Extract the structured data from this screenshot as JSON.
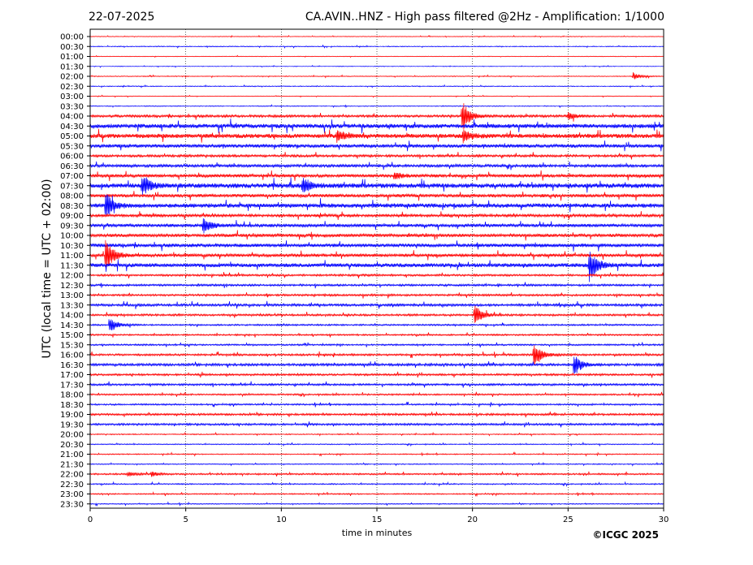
{
  "header": {
    "date": "22-07-2025",
    "title": "CA.AVIN..HNZ - High pass filtered @2Hz - Amplification: 1/1000"
  },
  "footer": {
    "copyright": "©ICGC 2025"
  },
  "colors": {
    "red": "#ff0000",
    "blue": "#0000ff"
  },
  "chart_data": {
    "type": "line",
    "title": "CA.AVIN..HNZ - High pass filtered @2Hz - Amplification: 1/1000",
    "xlabel": "time in minutes",
    "ylabel": "UTC (local time = UTC + 02:00)",
    "xlim": [
      0,
      30
    ],
    "xticks": [
      0,
      5,
      10,
      15,
      20,
      25,
      30
    ],
    "grid": "vertical dotted lines at x = 5, 10, 15, 20, 25",
    "row_labels": [
      "00:00",
      "00:30",
      "01:00",
      "01:30",
      "02:00",
      "02:30",
      "03:00",
      "03:30",
      "04:00",
      "04:30",
      "05:00",
      "05:30",
      "06:00",
      "06:30",
      "07:00",
      "07:30",
      "08:00",
      "08:30",
      "09:00",
      "09:30",
      "10:00",
      "10:30",
      "11:00",
      "11:30",
      "12:00",
      "12:30",
      "13:00",
      "13:30",
      "14:00",
      "14:30",
      "15:00",
      "15:30",
      "16:00",
      "16:30",
      "17:00",
      "17:30",
      "18:00",
      "18:30",
      "19:00",
      "19:30",
      "20:00",
      "20:30",
      "21:00",
      "21:30",
      "22:00",
      "22:30",
      "23:00",
      "23:30"
    ],
    "row_color_cycle": [
      "red",
      "blue"
    ],
    "noise_levels": [
      0.3,
      0.4,
      0.3,
      0.3,
      0.4,
      0.4,
      0.3,
      0.4,
      1.2,
      2.2,
      2.2,
      1.8,
      1.2,
      1.4,
      1.6,
      2.4,
      1.6,
      2.2,
      1.4,
      1.6,
      1.6,
      1.8,
      1.6,
      2.0,
      1.0,
      1.0,
      1.0,
      1.2,
      1.0,
      0.8,
      0.8,
      0.8,
      1.0,
      1.2,
      1.0,
      1.0,
      0.8,
      0.8,
      1.0,
      1.0,
      0.5,
      0.5,
      0.5,
      0.5,
      0.8,
      0.6,
      0.6,
      0.5
    ],
    "events": [
      {
        "row": "04:00",
        "x": 19.45,
        "amplitude": 20
      },
      {
        "row": "04:00",
        "x": 25.0,
        "amplitude": 5
      },
      {
        "row": "02:00",
        "x": 28.4,
        "amplitude": 5
      },
      {
        "row": "05:00",
        "x": 12.9,
        "amplitude": 7
      },
      {
        "row": "05:00",
        "x": 19.5,
        "amplitude": 8
      },
      {
        "row": "07:00",
        "x": 15.9,
        "amplitude": 5
      },
      {
        "row": "07:30",
        "x": 2.7,
        "amplitude": 14
      },
      {
        "row": "07:30",
        "x": 11.1,
        "amplitude": 10
      },
      {
        "row": "08:30",
        "x": 0.8,
        "amplitude": 18
      },
      {
        "row": "09:30",
        "x": 5.9,
        "amplitude": 12
      },
      {
        "row": "11:00",
        "x": 0.8,
        "amplitude": 22
      },
      {
        "row": "11:30",
        "x": 26.1,
        "amplitude": 22
      },
      {
        "row": "14:00",
        "x": 20.1,
        "amplitude": 14
      },
      {
        "row": "14:30",
        "x": 1.0,
        "amplitude": 10
      },
      {
        "row": "16:00",
        "x": 23.2,
        "amplitude": 16
      },
      {
        "row": "16:30",
        "x": 25.3,
        "amplitude": 14
      },
      {
        "row": "22:00",
        "x": 2.0,
        "amplitude": 3
      },
      {
        "row": "22:00",
        "x": 3.2,
        "amplitude": 3
      }
    ]
  }
}
